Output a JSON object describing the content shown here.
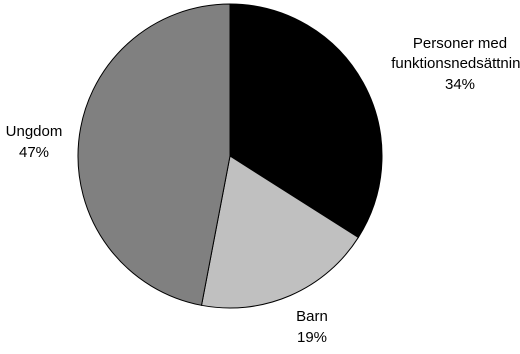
{
  "chart_data": {
    "type": "pie",
    "title": "",
    "slices": [
      {
        "label_lines": [
          "Personer med",
          "funktionsnedsättning"
        ],
        "value_label": "34%",
        "value": 34,
        "color": "#000000"
      },
      {
        "label_lines": [
          "Barn"
        ],
        "value_label": "19%",
        "value": 19,
        "color": "#c0c0c0"
      },
      {
        "label_lines": [
          "Ungdom"
        ],
        "value_label": "47%",
        "value": 47,
        "color": "#808080"
      }
    ],
    "start": "12 o'clock",
    "direction": "clockwise",
    "legend": "none",
    "labels": "outside, next to slices"
  }
}
